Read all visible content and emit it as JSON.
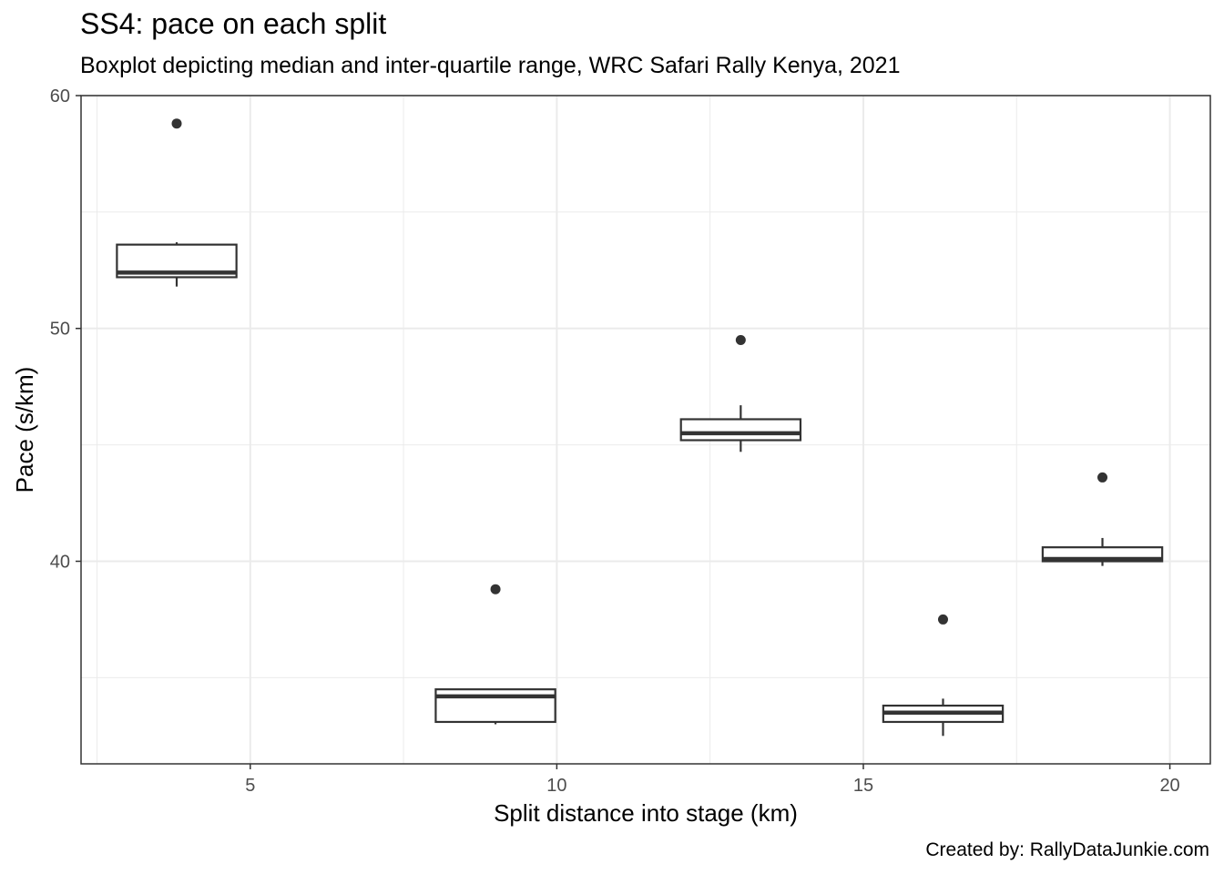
{
  "chart_data": {
    "type": "boxplot",
    "title": "SS4: pace on each split",
    "subtitle": "Boxplot depicting median and inter-quartile range, WRC Safari Rally Kenya, 2021",
    "caption": "Created by: RallyDataJunkie.com",
    "xlabel": "Split distance into stage (km)",
    "ylabel": "Pace (s/km)",
    "xlim": [
      2.24,
      20.66
    ],
    "ylim": [
      31.3,
      60.0
    ],
    "x_ticks": [
      5,
      10,
      15,
      20
    ],
    "y_ticks": [
      40,
      50,
      60
    ],
    "grid": true,
    "boxes": [
      {
        "x": 3.8,
        "width": 1.95,
        "q1": 52.2,
        "median": 52.4,
        "q3": 53.6,
        "whisker_low": 51.8,
        "whisker_high": 53.7,
        "outliers": [
          58.8
        ]
      },
      {
        "x": 9.0,
        "width": 1.95,
        "q1": 33.1,
        "median": 34.2,
        "q3": 34.5,
        "whisker_low": 33.0,
        "whisker_high": 34.5,
        "outliers": [
          38.8
        ]
      },
      {
        "x": 13.0,
        "width": 1.95,
        "q1": 45.2,
        "median": 45.5,
        "q3": 46.1,
        "whisker_low": 44.7,
        "whisker_high": 46.7,
        "outliers": [
          49.5
        ]
      },
      {
        "x": 16.3,
        "width": 1.95,
        "q1": 33.1,
        "median": 33.5,
        "q3": 33.8,
        "whisker_low": 32.5,
        "whisker_high": 34.1,
        "outliers": [
          37.5
        ]
      },
      {
        "x": 18.9,
        "width": 1.95,
        "q1": 40.0,
        "median": 40.1,
        "q3": 40.6,
        "whisker_low": 39.8,
        "whisker_high": 41.0,
        "outliers": [
          43.6
        ]
      }
    ]
  }
}
